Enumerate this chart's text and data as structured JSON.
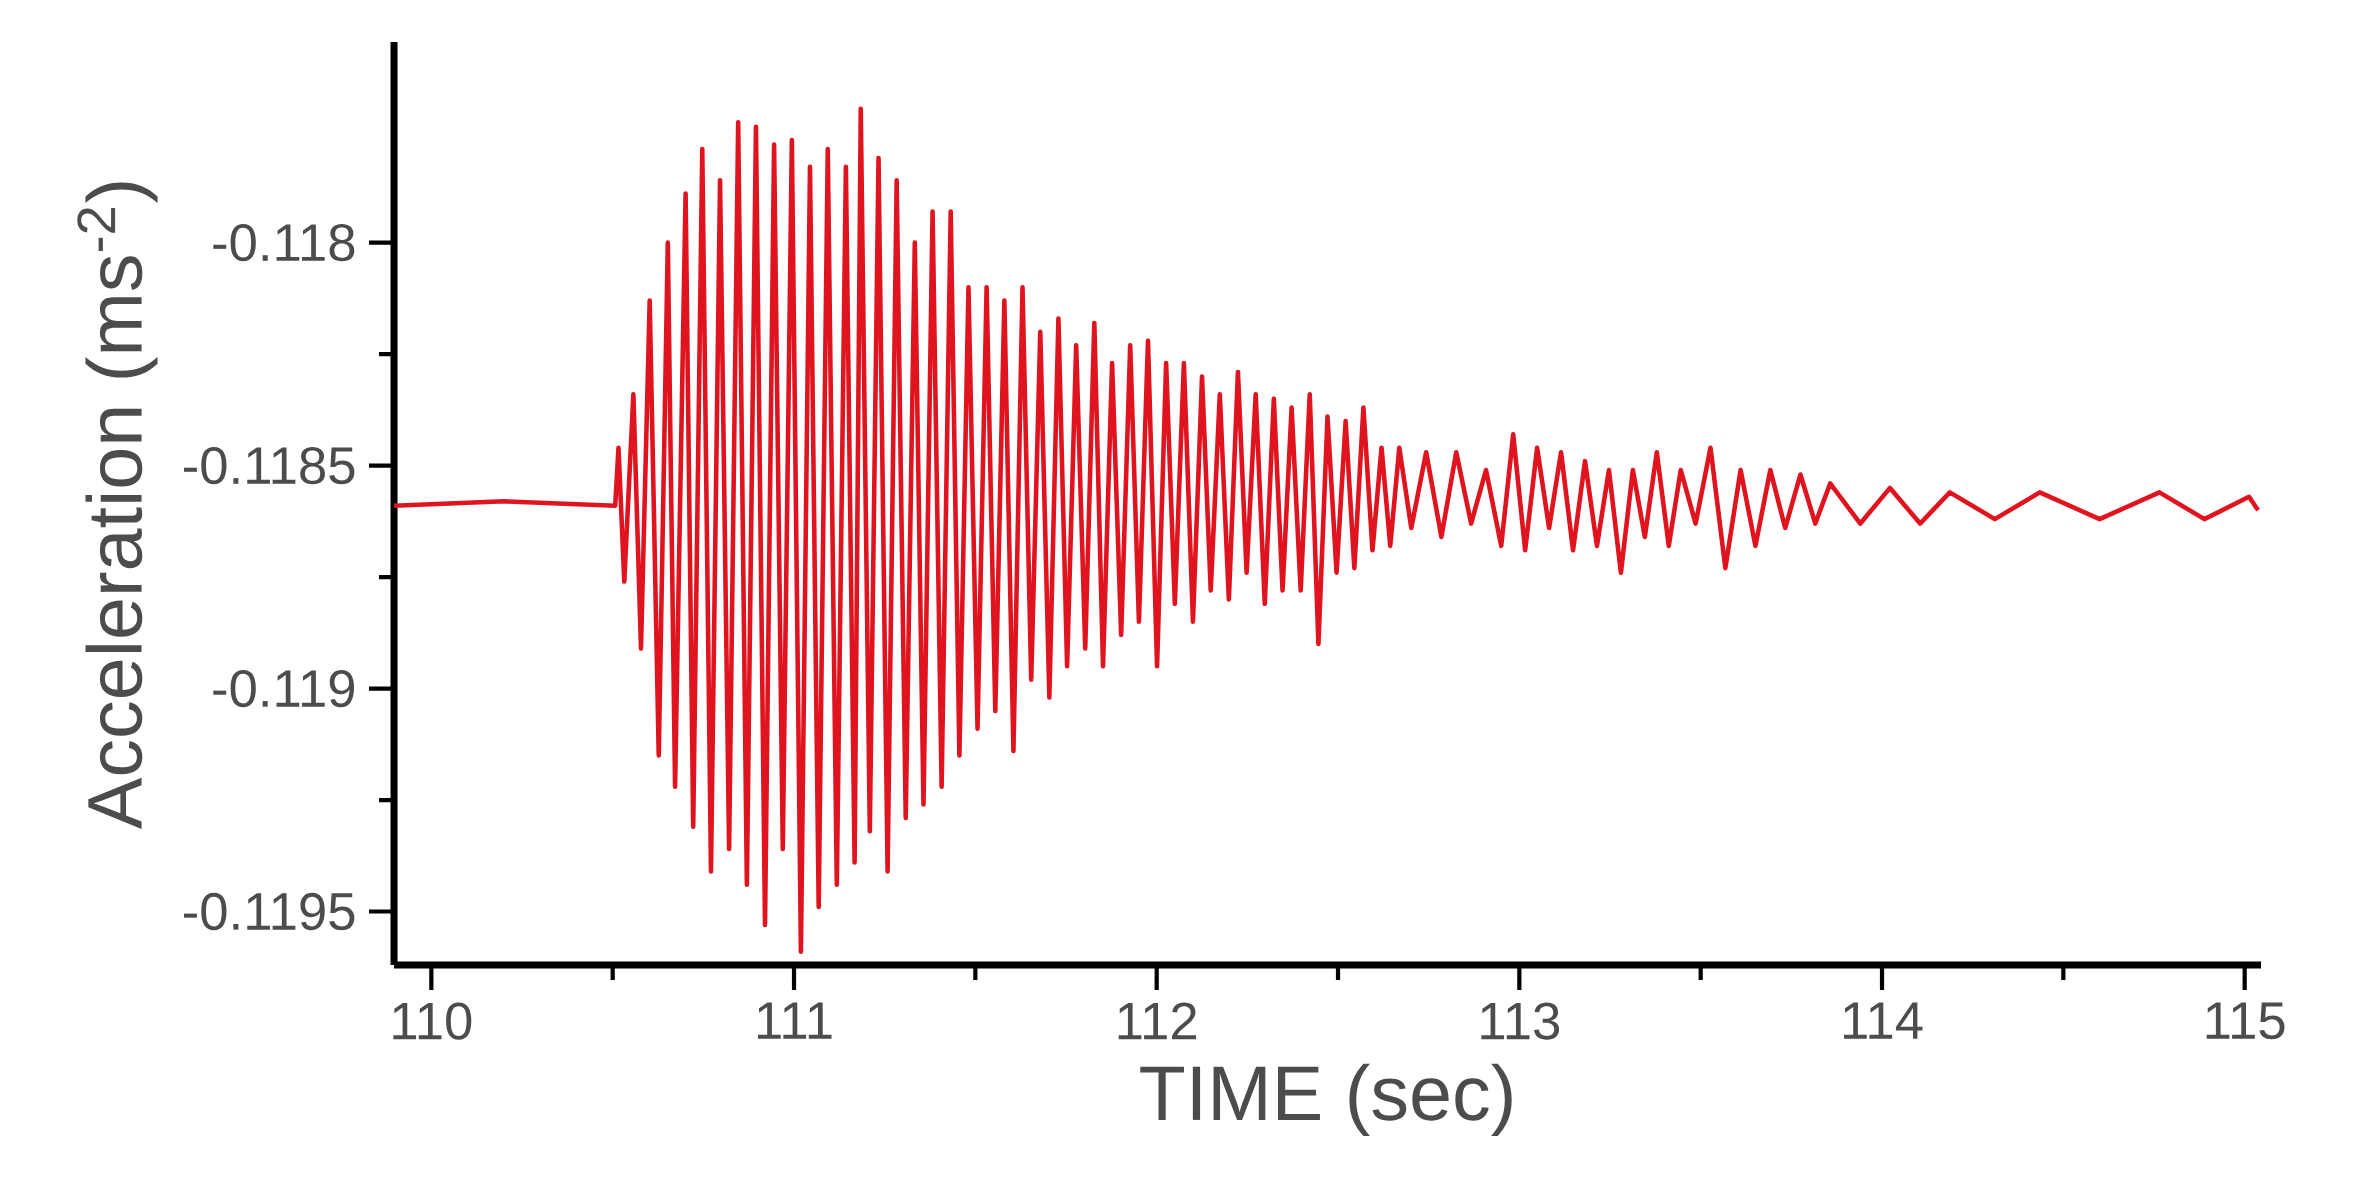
{
  "chart_data": {
    "type": "line",
    "xlabel": "TIME (sec)",
    "ylabel": "Acceleration (ms$^{-2}$)",
    "xlim": [
      109.897,
      115.045
    ],
    "ylim": [
      -0.11962,
      -0.11755
    ],
    "xticks": [
      110,
      111,
      112,
      113,
      114,
      115
    ],
    "yticks": [
      -0.118,
      -0.1185,
      -0.119,
      -0.1195
    ],
    "series": [
      {
        "color": "#e0141e",
        "x": [
          109.897,
          110.2,
          110.507,
          110.516,
          110.532,
          110.557,
          110.578,
          110.602,
          110.627,
          110.652,
          110.672,
          110.701,
          110.722,
          110.747,
          110.771,
          110.796,
          110.821,
          110.846,
          110.87,
          110.895,
          110.92,
          110.945,
          110.969,
          110.994,
          111.019,
          111.044,
          111.068,
          111.093,
          111.118,
          111.143,
          111.167,
          111.184,
          111.209,
          111.233,
          111.258,
          111.283,
          111.308,
          111.333,
          111.357,
          111.382,
          111.407,
          111.432,
          111.456,
          111.481,
          111.506,
          111.531,
          111.555,
          111.58,
          111.605,
          111.63,
          111.654,
          111.679,
          111.704,
          111.729,
          111.753,
          111.778,
          111.803,
          111.828,
          111.852,
          111.877,
          111.902,
          111.927,
          111.951,
          111.976,
          112.001,
          112.026,
          112.05,
          112.075,
          112.1,
          112.125,
          112.149,
          112.174,
          112.199,
          112.224,
          112.248,
          112.273,
          112.298,
          112.323,
          112.347,
          112.372,
          112.397,
          112.422,
          112.446,
          112.471,
          112.496,
          112.521,
          112.545,
          112.57,
          112.595,
          112.62,
          112.644,
          112.669,
          112.702,
          112.743,
          112.785,
          112.826,
          112.867,
          112.908,
          112.95,
          112.983,
          113.016,
          113.049,
          113.082,
          113.115,
          113.148,
          113.181,
          113.214,
          113.247,
          113.28,
          113.313,
          113.346,
          113.379,
          113.412,
          113.445,
          113.486,
          113.527,
          113.568,
          113.61,
          113.651,
          113.692,
          113.733,
          113.775,
          113.816,
          113.857,
          113.94,
          114.022,
          114.105,
          114.187,
          114.311,
          114.435,
          114.6,
          114.765,
          114.889,
          115.012,
          115.037
        ],
        "values": [
          -0.11859,
          -0.11858,
          -0.11859,
          -0.11846,
          -0.11876,
          -0.11834,
          -0.11891,
          -0.11813,
          -0.11915,
          -0.118,
          -0.11922,
          -0.11789,
          -0.11931,
          -0.11779,
          -0.11941,
          -0.11786,
          -0.11936,
          -0.11773,
          -0.11944,
          -0.11774,
          -0.11953,
          -0.11778,
          -0.11936,
          -0.11777,
          -0.11959,
          -0.11783,
          -0.11949,
          -0.11779,
          -0.11944,
          -0.11783,
          -0.11939,
          -0.1177,
          -0.11932,
          -0.11781,
          -0.11941,
          -0.11786,
          -0.11929,
          -0.118,
          -0.11926,
          -0.11793,
          -0.11922,
          -0.11793,
          -0.11915,
          -0.1181,
          -0.11909,
          -0.1181,
          -0.11905,
          -0.11813,
          -0.11914,
          -0.1181,
          -0.11898,
          -0.1182,
          -0.11902,
          -0.11817,
          -0.11895,
          -0.11823,
          -0.11891,
          -0.11818,
          -0.11895,
          -0.11827,
          -0.11888,
          -0.11823,
          -0.11885,
          -0.11822,
          -0.11895,
          -0.11827,
          -0.11881,
          -0.11827,
          -0.11885,
          -0.1183,
          -0.11878,
          -0.11834,
          -0.1188,
          -0.11829,
          -0.11874,
          -0.11834,
          -0.11881,
          -0.11835,
          -0.11878,
          -0.11837,
          -0.11878,
          -0.11834,
          -0.1189,
          -0.11839,
          -0.11874,
          -0.1184,
          -0.11873,
          -0.11837,
          -0.11869,
          -0.11846,
          -0.11868,
          -0.11846,
          -0.11864,
          -0.11847,
          -0.11866,
          -0.11847,
          -0.11863,
          -0.11851,
          -0.11868,
          -0.11843,
          -0.11869,
          -0.11846,
          -0.11864,
          -0.11847,
          -0.11869,
          -0.11849,
          -0.11868,
          -0.11851,
          -0.11874,
          -0.11851,
          -0.11866,
          -0.11847,
          -0.11868,
          -0.11851,
          -0.11863,
          -0.11846,
          -0.11873,
          -0.11851,
          -0.11868,
          -0.11851,
          -0.11864,
          -0.11852,
          -0.11863,
          -0.11854,
          -0.11863,
          -0.11855,
          -0.11863,
          -0.11856,
          -0.11862,
          -0.11856,
          -0.11862,
          -0.11856,
          -0.11862,
          -0.11857,
          -0.1186
        ]
      }
    ]
  }
}
